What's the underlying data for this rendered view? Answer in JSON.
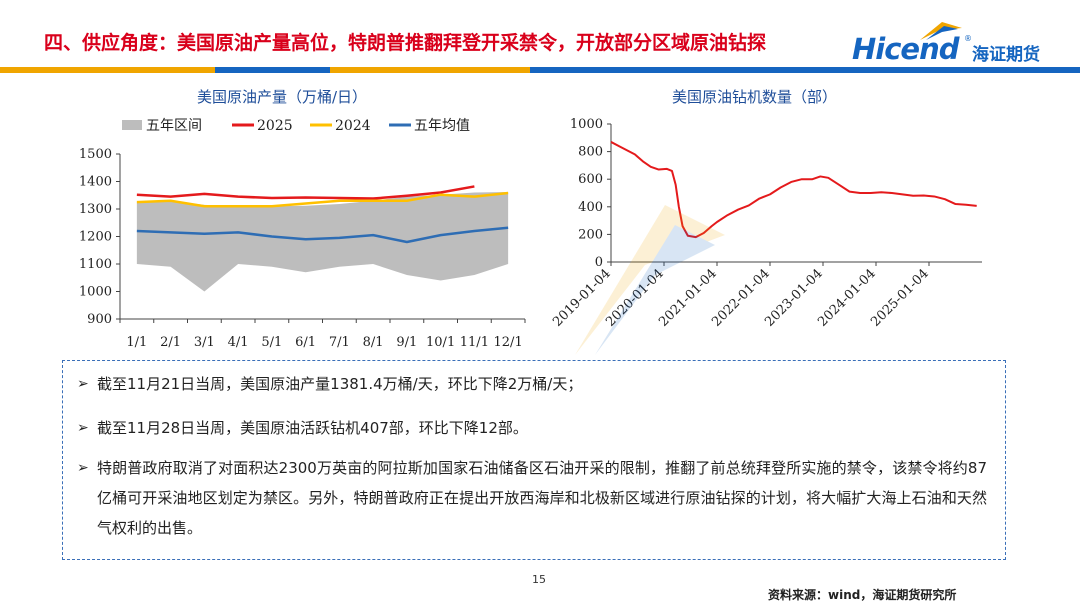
{
  "header": {
    "title": "四、供应角度：美国原油产量高位，特朗普推翻拜登开采禁令，开放部分区域原油钻探"
  },
  "logo": {
    "text_en": "Hicend",
    "reg": "®",
    "text_cn": "海证期货"
  },
  "colors": {
    "title_red": "#d9001b",
    "brand_blue": "#1565c0",
    "band_gold": "#f0a500",
    "band_blue": "#1565c0"
  },
  "chart_data": [
    {
      "type": "line",
      "title": "美国原油产量（万桶/日）",
      "categories": [
        "1/1",
        "2/1",
        "3/1",
        "4/1",
        "5/1",
        "6/1",
        "7/1",
        "8/1",
        "9/1",
        "10/1",
        "11/1",
        "12/1"
      ],
      "ylim": [
        900,
        1500
      ],
      "yticks": [
        900,
        1000,
        1100,
        1200,
        1300,
        1400,
        1500
      ],
      "legend_position": "top",
      "band": {
        "name": "五年区间",
        "color": "#bdbdbd",
        "upper": [
          1325,
          1330,
          1315,
          1310,
          1310,
          1312,
          1318,
          1330,
          1345,
          1352,
          1360,
          1362
        ],
        "lower": [
          1100,
          1090,
          1000,
          1100,
          1090,
          1070,
          1090,
          1100,
          1060,
          1040,
          1060,
          1100
        ]
      },
      "series": [
        {
          "name": "2025",
          "color": "#e41a1c",
          "values": [
            1352,
            1345,
            1355,
            1345,
            1340,
            1342,
            1340,
            1338,
            1348,
            1360,
            1382,
            null
          ]
        },
        {
          "name": "2024",
          "color": "#ffc000",
          "values": [
            1325,
            1330,
            1310,
            1310,
            1310,
            1320,
            1330,
            1330,
            1330,
            1352,
            1345,
            1358
          ]
        },
        {
          "name": "五年均值",
          "color": "#2e6db4",
          "values": [
            1220,
            1215,
            1210,
            1215,
            1200,
            1190,
            1195,
            1205,
            1180,
            1205,
            1220,
            1232
          ]
        }
      ]
    },
    {
      "type": "line",
      "title": "美国原油钻机数量（部）",
      "ylim": [
        0,
        1000
      ],
      "yticks": [
        0,
        200,
        400,
        600,
        800,
        1000
      ],
      "x_ticks": [
        "2019-01-04",
        "2020-01-04",
        "2021-01-04",
        "2022-01-04",
        "2023-01-04",
        "2024-01-04",
        "2025-01-04"
      ],
      "series": [
        {
          "name": "美国原油钻机数量",
          "color": "#e41a1c",
          "x": [
            2019.0,
            2019.15,
            2019.3,
            2019.45,
            2019.6,
            2019.75,
            2019.9,
            2020.05,
            2020.15,
            2020.22,
            2020.28,
            2020.35,
            2020.45,
            2020.6,
            2020.75,
            2020.9,
            2021.0,
            2021.2,
            2021.4,
            2021.6,
            2021.8,
            2022.0,
            2022.2,
            2022.4,
            2022.6,
            2022.8,
            2022.95,
            2023.1,
            2023.3,
            2023.5,
            2023.7,
            2023.9,
            2024.1,
            2024.3,
            2024.5,
            2024.7,
            2024.9,
            2025.1,
            2025.3,
            2025.5,
            2025.7,
            2025.9
          ],
          "values": [
            870,
            840,
            810,
            780,
            730,
            690,
            670,
            675,
            660,
            560,
            400,
            260,
            190,
            180,
            210,
            260,
            290,
            340,
            380,
            410,
            460,
            490,
            540,
            580,
            600,
            600,
            620,
            610,
            560,
            510,
            500,
            500,
            505,
            500,
            490,
            480,
            482,
            475,
            455,
            420,
            415,
            407
          ]
        }
      ]
    }
  ],
  "bullets": [
    "截至11月21日当周，美国原油产量1381.4万桶/天，环比下降2万桶/天；",
    "截至11月28日当周，美国原油活跃钻机407部，环比下降12部。",
    "特朗普政府取消了对面积达2300万英亩的阿拉斯加国家石油储备区石油开采的限制，推翻了前总统拜登所实施的禁令，该禁令将约87亿桶可开采油地区划定为禁区。另外，特朗普政府正在提出开放西海岸和北极新区域进行原油钻探的计划，将大幅扩大海上石油和天然气权利的出售。"
  ],
  "footer": {
    "page": "15",
    "source": "资料来源：wind，海证期货研究所"
  }
}
